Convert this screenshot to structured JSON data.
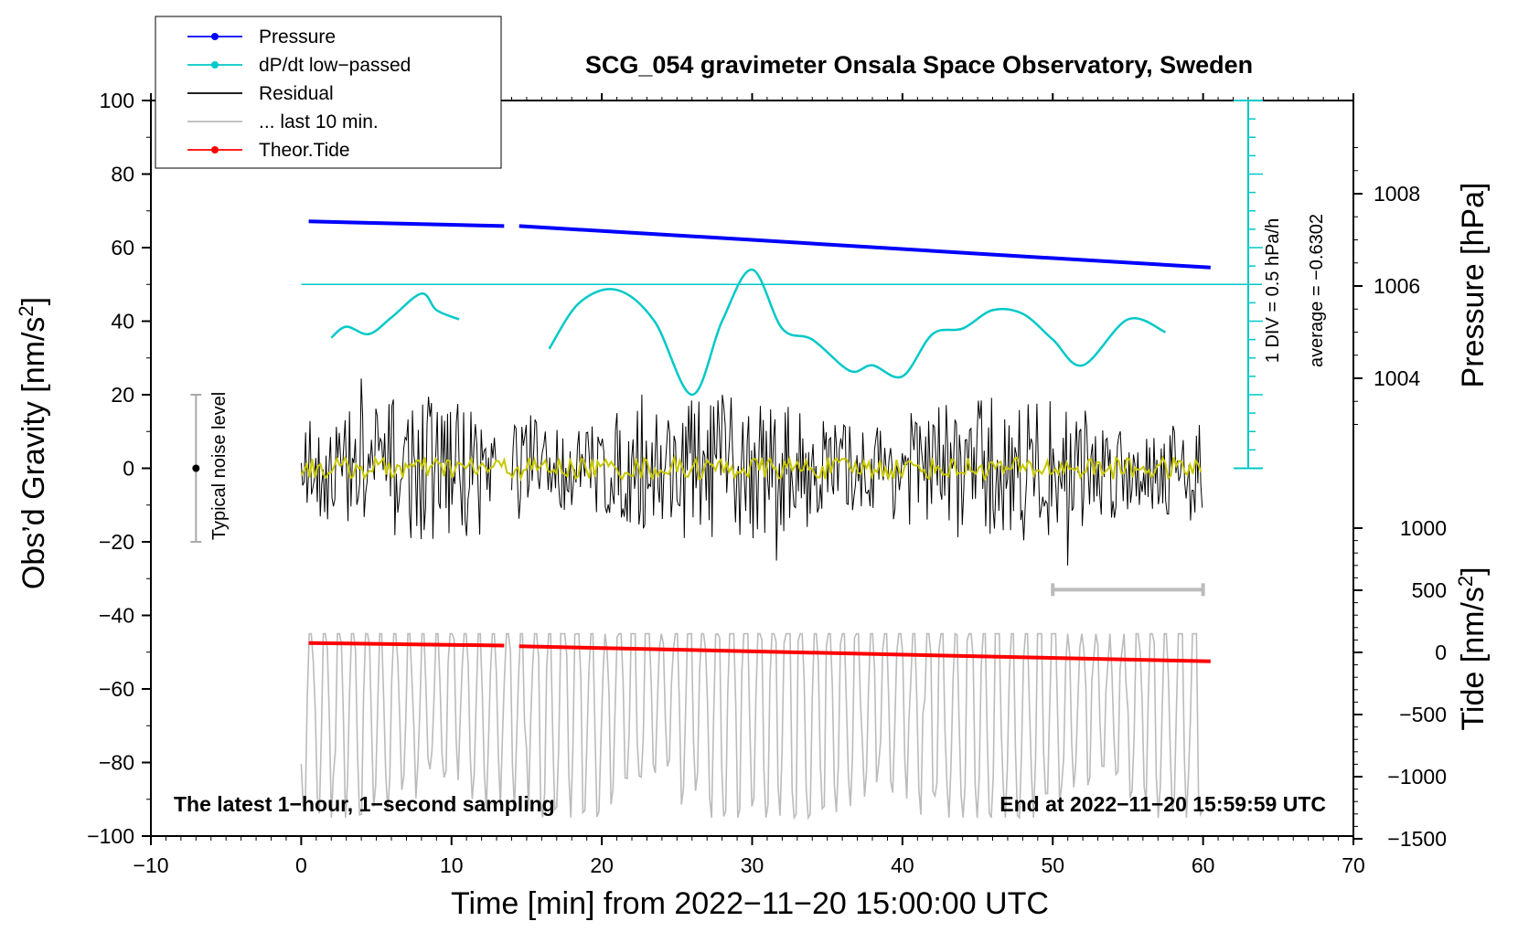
{
  "chart_data": {
    "type": "line",
    "title": "SCG_054 gravimeter Onsala Space Observatory, Sweden",
    "xlabel": "Time [min] from 2022−11−20 15:00:00 UTC",
    "ylabel_main": "Obs’d Gravity [nm/s",
    "ylabel_main_sup": "2",
    "ylabel_main_end": "]",
    "ylabel_pressure": "Pressure [hPa]",
    "ylabel_tide": "Tide [nm/s",
    "ylabel_tide_sup": "2",
    "ylabel_tide_end": "]",
    "xlim": [
      -10,
      70
    ],
    "ylim": [
      -100,
      100
    ],
    "x_ticks": [
      -10,
      0,
      10,
      20,
      30,
      40,
      50,
      60,
      70
    ],
    "x_tick_labels": [
      "−10",
      "0",
      "10",
      "20",
      "30",
      "40",
      "50",
      "60",
      "70"
    ],
    "y_ticks": [
      100,
      80,
      60,
      40,
      20,
      0,
      -20,
      -40,
      -60,
      -80,
      -100
    ],
    "y_tick_labels": [
      "100",
      "80",
      "60",
      "40",
      "20",
      "0",
      "−20",
      "−40",
      "−60",
      "−80",
      "−100"
    ],
    "pressure_ticks": [
      1008,
      1006,
      1004
    ],
    "pressure_tick_labels": [
      "1008",
      "1006",
      "1004"
    ],
    "tide_ticks": [
      1000,
      500,
      0,
      -500,
      -1000,
      -1500
    ],
    "tide_tick_labels": [
      "1000",
      "500",
      "0",
      "−500",
      "−1000",
      "−1500"
    ],
    "legend": [
      {
        "label": "Pressure",
        "color": "#0000ff",
        "marker": true
      },
      {
        "label": "dP/dt low−passed",
        "color": "#00c8c8",
        "marker": true
      },
      {
        "label": "Residual",
        "color": "#000000",
        "marker": false
      },
      {
        "label": "... last 10 min.",
        "color": "#bbbbbb",
        "marker": false
      },
      {
        "label": "Theor.Tide",
        "color": "#ff0000",
        "marker": true
      }
    ],
    "series": [
      {
        "name": "Pressure",
        "color": "#0000ff",
        "x": [
          0.5,
          13.5,
          14.5,
          30,
          45,
          60.5
        ],
        "values": [
          1007.4,
          1007.3,
          1007.3,
          1007.0,
          1006.7,
          1006.4
        ]
      },
      {
        "name": "dP/dt low-passed",
        "color": "#00c8c8",
        "x": [
          2,
          3,
          4.5,
          6,
          8,
          9,
          10.5,
          16.5,
          18.5,
          21,
          23.5,
          26,
          28,
          30,
          32,
          34,
          36.5,
          38,
          40,
          42,
          44,
          46,
          48,
          50,
          52,
          55,
          57.5
        ],
        "values": [
          35.5,
          38.5,
          36.5,
          41,
          47.5,
          43,
          40.5,
          32.5,
          45,
          48.5,
          40,
          20,
          40,
          54,
          38,
          35,
          26.5,
          28,
          25,
          36.5,
          38,
          43,
          42,
          35,
          28,
          40.5,
          37
        ]
      },
      {
        "name": "Residual",
        "color": "#000000",
        "noise_amplitude": 20,
        "x_range": [
          0,
          60
        ],
        "gap": [
          13,
          14
        ]
      },
      {
        "name": "Residual smoothed",
        "color": "#c8c800",
        "noise_amplitude": 3,
        "x_range": [
          0,
          60
        ]
      },
      {
        "name": "Theor.Tide",
        "color": "#ff0000",
        "x": [
          0.5,
          13.5,
          14.5,
          60.5
        ],
        "values": [
          -47.5,
          -48.2,
          -48.4,
          -52.5
        ]
      },
      {
        "name": "last 10 min.",
        "color": "#bbbbbb",
        "y_range": [
          -95,
          -45
        ]
      }
    ],
    "noise_label": "Typical noise level",
    "noise_level": [
      -20,
      20
    ],
    "dpdt_scale_label": "1 DIV = 0.5 hPa/h",
    "dpdt_average_label": "average = −0.6302",
    "dpdt_baseline": 50,
    "last10_range": [
      50,
      60
    ],
    "note_left": "The latest 1−hour, 1−second sampling",
    "note_right": "End at 2022−11−20 15:59:59 UTC"
  }
}
